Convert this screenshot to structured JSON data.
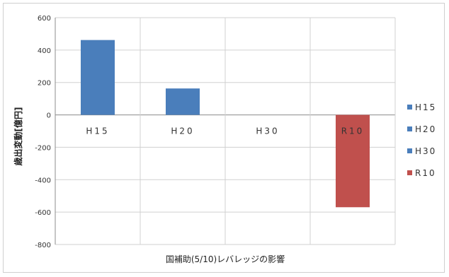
{
  "chart_data": {
    "type": "bar",
    "categories": [
      "H15",
      "H20",
      "H30",
      "R10"
    ],
    "category_labels": [
      "H15",
      "H20",
      "H30",
      "R10"
    ],
    "values": [
      462,
      163,
      0,
      -570
    ],
    "colors": [
      "#4a7ebb",
      "#4a7ebb",
      "#4a7ebb",
      "#c0504d"
    ],
    "ylabel": "歳出変動[億円]",
    "xlabel": "国補助(5/10)レバレッジの影響",
    "ylim": [
      -800,
      600
    ],
    "yticks": [
      -800,
      -600,
      -400,
      -200,
      0,
      200,
      400,
      600
    ],
    "grid": true,
    "legend_position": "right",
    "legend": [
      {
        "label": "H15",
        "color": "#4a7ebb"
      },
      {
        "label": "H20",
        "color": "#4a7ebb"
      },
      {
        "label": "H30",
        "color": "#4a7ebb"
      },
      {
        "label": "R10",
        "color": "#c0504d"
      }
    ]
  }
}
